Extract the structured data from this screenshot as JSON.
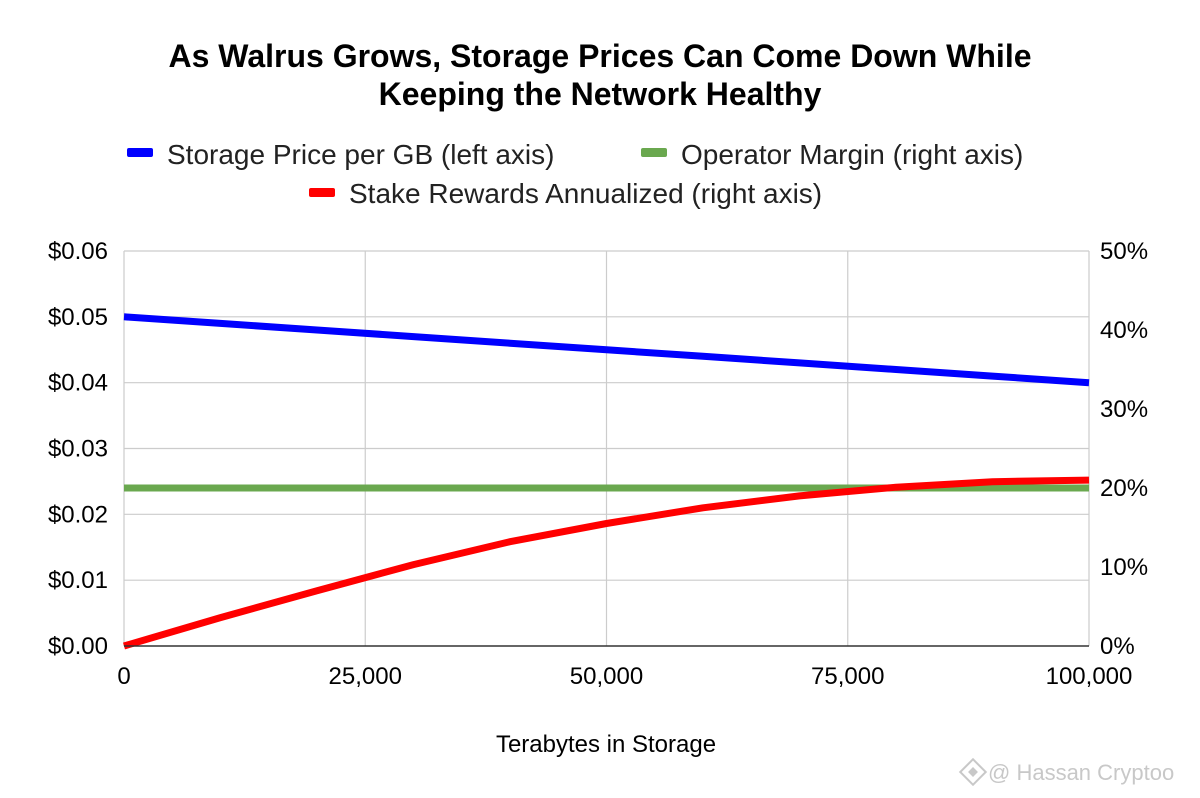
{
  "chart_data": {
    "type": "line",
    "title_lines": [
      "As Walrus Grows, Storage Prices Can Come Down While",
      "Keeping the Network Healthy"
    ],
    "xlabel": "Terabytes in Storage",
    "xlim": [
      0,
      100000
    ],
    "x_ticks": [
      0,
      25000,
      50000,
      75000,
      100000
    ],
    "x_tick_labels": [
      "0",
      "25,000",
      "50,000",
      "75,000",
      "100,000"
    ],
    "ylim_left": [
      0,
      0.06
    ],
    "y_left_ticks": [
      0,
      0.01,
      0.02,
      0.03,
      0.04,
      0.05,
      0.06
    ],
    "y_left_tick_labels": [
      "$0.00",
      "$0.01",
      "$0.02",
      "$0.03",
      "$0.04",
      "$0.05",
      "$0.06"
    ],
    "ylim_right": [
      0,
      50
    ],
    "y_right_ticks": [
      0,
      10,
      20,
      30,
      40,
      50
    ],
    "y_right_tick_labels": [
      "0%",
      "10%",
      "20%",
      "30%",
      "40%",
      "50%"
    ],
    "grid": true,
    "legend_position": "top",
    "series": [
      {
        "name": "Storage Price per GB (left axis)",
        "axis": "left",
        "color": "#0000ff",
        "x": [
          0,
          10000,
          20000,
          30000,
          40000,
          50000,
          60000,
          70000,
          80000,
          90000,
          100000
        ],
        "y": [
          0.05,
          0.049,
          0.048,
          0.047,
          0.046,
          0.045,
          0.044,
          0.043,
          0.042,
          0.041,
          0.04
        ]
      },
      {
        "name": "Operator Margin (right axis)",
        "axis": "right",
        "color": "#6aa84f",
        "x": [
          0,
          10000,
          20000,
          30000,
          40000,
          50000,
          60000,
          70000,
          80000,
          90000,
          100000
        ],
        "y": [
          20,
          20,
          20,
          20,
          20,
          20,
          20,
          20,
          20,
          20,
          20
        ]
      },
      {
        "name": "Stake Rewards Annualized (right axis)",
        "axis": "right",
        "color": "#ff0000",
        "x": [
          0,
          10000,
          20000,
          30000,
          40000,
          50000,
          60000,
          70000,
          80000,
          90000,
          100000
        ],
        "y": [
          0,
          3.6,
          7.0,
          10.3,
          13.2,
          15.5,
          17.5,
          19.0,
          20.1,
          20.8,
          21.0
        ]
      }
    ]
  },
  "watermark": {
    "text": "@ Hassan Cryptoo",
    "color": "#c8c8c8"
  }
}
